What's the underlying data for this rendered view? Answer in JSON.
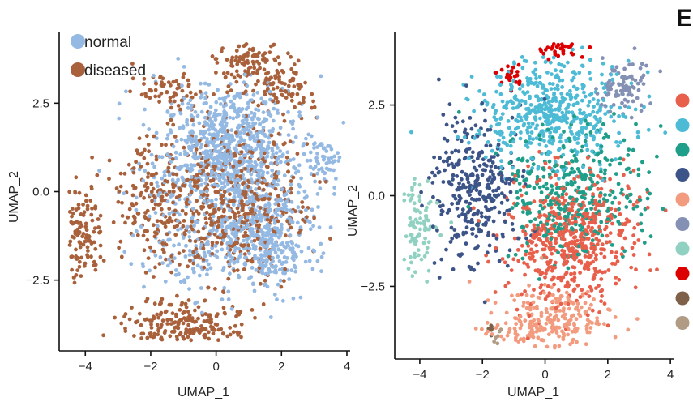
{
  "panel_letter_right": "E",
  "chart_data": [
    {
      "type": "scatter",
      "title": "",
      "xlabel": "UMAP_1",
      "ylabel": "UMAP_2",
      "xlim": [
        -4.8,
        4.1
      ],
      "ylim": [
        -4.5,
        4.5
      ],
      "xticks": [
        -4,
        -2,
        0,
        2,
        4
      ],
      "yticks": [
        -2.5,
        0.0,
        2.5
      ],
      "xtick_labels": [
        "−4",
        "−2",
        "0",
        "2",
        "4"
      ],
      "ytick_labels": [
        "−2.5",
        "0.0",
        "2.5"
      ],
      "grid": false,
      "legend": "top-left",
      "series": [
        {
          "name": "normal",
          "color": "#94b9e3",
          "clusters": [
            [
              0.6,
              1.6,
              0.9,
              0.7,
              380
            ],
            [
              0.2,
              0.6,
              1.3,
              1.0,
              520
            ],
            [
              1.6,
              -1.3,
              0.7,
              0.8,
              360
            ],
            [
              3.3,
              0.8,
              0.25,
              0.35,
              50
            ],
            [
              -0.3,
              -1.6,
              1.0,
              0.7,
              160
            ]
          ]
        },
        {
          "name": "diseased",
          "color": "#a9613b",
          "clusters": [
            [
              -4.1,
              -1.2,
              0.28,
              0.6,
              110
            ],
            [
              -1.0,
              -3.8,
              0.9,
              0.35,
              230
            ],
            [
              1.0,
              3.6,
              0.55,
              0.35,
              110
            ],
            [
              2.1,
              3.0,
              0.45,
              0.35,
              80
            ],
            [
              -1.4,
              2.9,
              0.6,
              0.25,
              60
            ],
            [
              0.4,
              -0.3,
              1.2,
              1.1,
              520
            ],
            [
              -1.9,
              -0.3,
              0.7,
              1.0,
              150
            ]
          ]
        }
      ]
    },
    {
      "type": "scatter",
      "title": "",
      "xlabel": "UMAP_1",
      "ylabel": "UMAP_2",
      "xlim": [
        -4.8,
        4.1
      ],
      "ylim": [
        -4.5,
        4.5
      ],
      "xticks": [
        -4,
        -2,
        0,
        2,
        4
      ],
      "yticks": [
        -2.5,
        0.0,
        2.5
      ],
      "xtick_labels": [
        "−4",
        "−2",
        "0",
        "2",
        "4"
      ],
      "ytick_labels": [
        "−2.5",
        "0.0",
        "2.5"
      ],
      "grid": false,
      "legend": "right",
      "series": [
        {
          "name": "",
          "color": "#e8604c",
          "clusters": [
            [
              0.8,
              -1.2,
              1.0,
              0.9,
              560
            ]
          ]
        },
        {
          "name": "",
          "color": "#4dbbd5",
          "clusters": [
            [
              0.2,
              2.3,
              1.2,
              0.75,
              520
            ]
          ]
        },
        {
          "name": "",
          "color": "#1f9e89",
          "clusters": [
            [
              0.9,
              0.1,
              1.2,
              0.9,
              380
            ]
          ]
        },
        {
          "name": "",
          "color": "#3c5488",
          "clusters": [
            [
              -2.3,
              0.2,
              0.7,
              1.1,
              330
            ]
          ]
        },
        {
          "name": "",
          "color": "#f39b7f",
          "clusters": [
            [
              0.0,
              -3.5,
              0.9,
              0.5,
              260
            ]
          ]
        },
        {
          "name": "",
          "color": "#8491b4",
          "clusters": [
            [
              2.5,
              3.0,
              0.4,
              0.35,
              90
            ]
          ]
        },
        {
          "name": "",
          "color": "#91d1c2",
          "clusters": [
            [
              -4.0,
              -0.9,
              0.3,
              0.7,
              90
            ]
          ]
        },
        {
          "name": "",
          "color": "#dc0000",
          "clusters": [
            [
              0.5,
              4.1,
              0.35,
              0.15,
              45
            ],
            [
              -1.1,
              3.3,
              0.2,
              0.15,
              25
            ]
          ]
        },
        {
          "name": "",
          "color": "#7e6148",
          "clusters": [
            [
              -1.7,
              -3.7,
              0.1,
              0.1,
              6
            ]
          ]
        },
        {
          "name": "",
          "color": "#b09c85",
          "clusters": [
            [
              -1.5,
              -3.8,
              0.15,
              0.1,
              6
            ]
          ]
        }
      ]
    }
  ]
}
